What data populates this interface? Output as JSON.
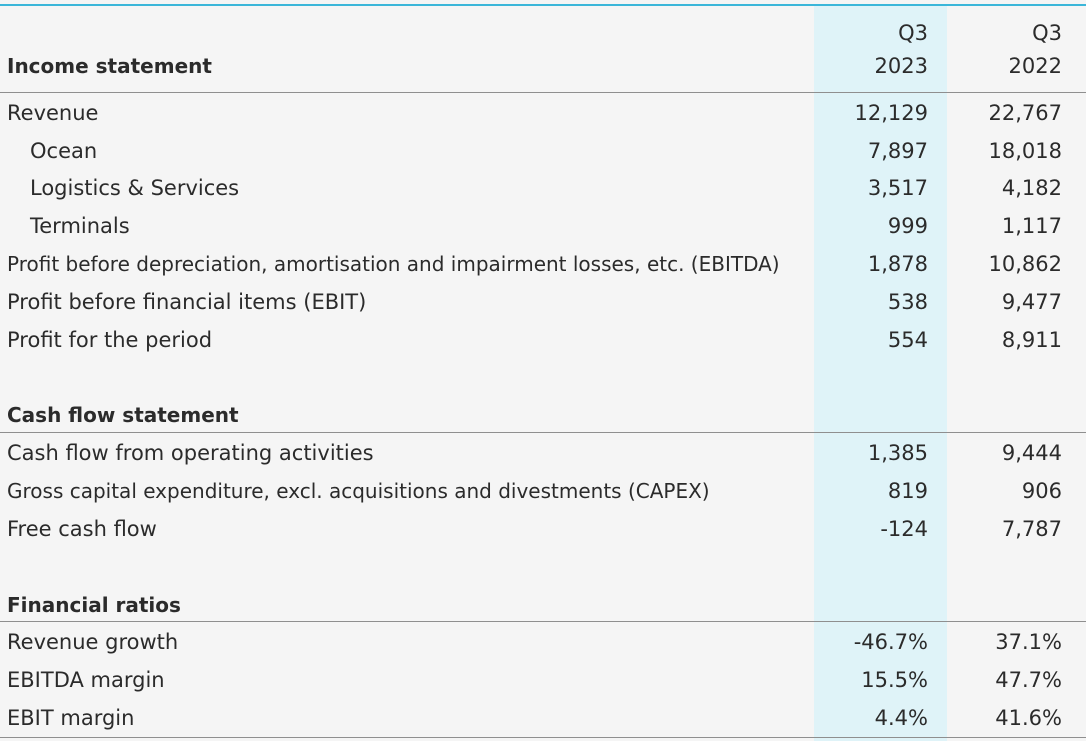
{
  "header": {
    "col1_line1": "Q3",
    "col1_line2": "2023",
    "col2_line1": "Q3",
    "col2_line2": "2022"
  },
  "income": {
    "title": "Income statement",
    "rows": [
      {
        "label": "Revenue",
        "q3_2023": "12,129",
        "q3_2022": "22,767"
      },
      {
        "label": "Ocean",
        "q3_2023": "7,897",
        "q3_2022": "18,018"
      },
      {
        "label": "Logistics & Services",
        "q3_2023": "3,517",
        "q3_2022": "4,182"
      },
      {
        "label": "Terminals",
        "q3_2023": "999",
        "q3_2022": "1,117"
      },
      {
        "label": "Profit before depreciation, amortisation and impairment losses, etc. (EBITDA)",
        "q3_2023": "1,878",
        "q3_2022": "10,862"
      },
      {
        "label": "Profit before financial items (EBIT)",
        "q3_2023": "538",
        "q3_2022": "9,477"
      },
      {
        "label": "Profit for the period",
        "q3_2023": "554",
        "q3_2022": "8,911"
      }
    ]
  },
  "cashflow": {
    "title": "Cash flow statement",
    "rows": [
      {
        "label": "Cash flow from operating activities",
        "q3_2023": "1,385",
        "q3_2022": "9,444"
      },
      {
        "label": "Gross capital expenditure, excl. acquisitions and divestments (CAPEX)",
        "q3_2023": "819",
        "q3_2022": "906"
      },
      {
        "label": "Free cash flow",
        "q3_2023": "-124",
        "q3_2022": "7,787"
      }
    ]
  },
  "ratios": {
    "title": "Financial ratios",
    "rows": [
      {
        "label": "Revenue growth",
        "q3_2023": "-46.7%",
        "q3_2022": "37.1%"
      },
      {
        "label": "EBITDA margin",
        "q3_2023": "15.5%",
        "q3_2022": "47.7%"
      },
      {
        "label": "EBIT margin",
        "q3_2023": "4.4%",
        "q3_2022": "41.6%"
      }
    ]
  },
  "colors": {
    "accent_line": "#3bb6d9",
    "highlight_column": "#dff3f8"
  }
}
